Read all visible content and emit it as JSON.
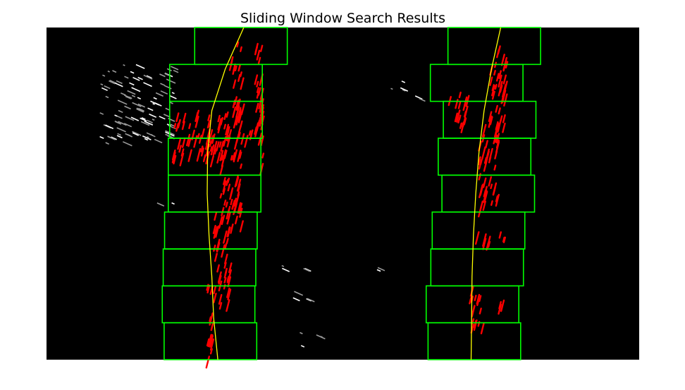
{
  "chart_data": {
    "type": "image_overlay",
    "title": "Sliding Window Search Results",
    "xlabel": "",
    "ylabel": "",
    "xlim": [
      0,
      1280
    ],
    "ylim": [
      720,
      0
    ],
    "axes_visible": false,
    "grid": false,
    "background": "#000000",
    "window_color": "#00ff00",
    "lane_pixel_color": "#ff0000",
    "fit_line_color": "#ffff00",
    "windows": {
      "count": 9,
      "height": 80,
      "left_x_ranges": [
        [
          320,
          520
        ],
        [
          266,
          466
        ],
        [
          266,
          466
        ],
        [
          263,
          463
        ],
        [
          263,
          463
        ],
        [
          255,
          455
        ],
        [
          252,
          452
        ],
        [
          250,
          450
        ],
        [
          254,
          454
        ]
      ],
      "right_x_ranges": [
        [
          867,
          1067
        ],
        [
          829,
          1029
        ],
        [
          857,
          1057
        ],
        [
          846,
          1046
        ],
        [
          854,
          1054
        ],
        [
          833,
          1033
        ],
        [
          830,
          1030
        ],
        [
          820,
          1020
        ],
        [
          824,
          1024
        ]
      ]
    },
    "fits": {
      "left": {
        "x": [
          426,
          386,
          357,
          348,
          347,
          351,
          357,
          361,
          370
        ],
        "y": [
          0,
          90,
          180,
          270,
          360,
          450,
          540,
          630,
          720
        ]
      },
      "right": {
        "x": [
          981,
          961,
          945,
          934,
          927,
          922,
          919,
          918,
          917
        ],
        "y": [
          0,
          90,
          180,
          270,
          360,
          450,
          540,
          630,
          720
        ]
      }
    },
    "pixel_clusters": {
      "left": [
        {
          "x": 395,
          "y": 60,
          "w": 16,
          "h": 140
        },
        {
          "x": 410,
          "y": 20,
          "w": 14,
          "h": 180
        },
        {
          "x": 448,
          "y": 30,
          "w": 18,
          "h": 220
        },
        {
          "x": 270,
          "y": 180,
          "w": 120,
          "h": 100
        },
        {
          "x": 390,
          "y": 200,
          "w": 70,
          "h": 40
        },
        {
          "x": 460,
          "y": 150,
          "w": 8,
          "h": 150
        },
        {
          "x": 375,
          "y": 260,
          "w": 45,
          "h": 180
        },
        {
          "x": 360,
          "y": 380,
          "w": 35,
          "h": 220
        },
        {
          "x": 345,
          "y": 550,
          "w": 14,
          "h": 170
        }
      ],
      "right": [
        {
          "x": 953,
          "y": 40,
          "w": 40,
          "h": 170
        },
        {
          "x": 868,
          "y": 140,
          "w": 40,
          "h": 80
        },
        {
          "x": 933,
          "y": 210,
          "w": 40,
          "h": 180
        },
        {
          "x": 920,
          "y": 440,
          "w": 35,
          "h": 30
        },
        {
          "x": 913,
          "y": 560,
          "w": 28,
          "h": 110
        },
        {
          "x": 973,
          "y": 590,
          "w": 16,
          "h": 18
        },
        {
          "x": 977,
          "y": 440,
          "w": 12,
          "h": 20
        }
      ]
    },
    "noise_clusters": [
      {
        "x": 115,
        "y": 80,
        "w": 160,
        "h": 170
      },
      {
        "x": 215,
        "y": 380,
        "w": 60,
        "h": 10
      },
      {
        "x": 740,
        "y": 110,
        "w": 30,
        "h": 35
      },
      {
        "x": 795,
        "y": 140,
        "w": 10,
        "h": 25
      },
      {
        "x": 505,
        "y": 515,
        "w": 5,
        "h": 10
      },
      {
        "x": 553,
        "y": 520,
        "w": 8,
        "h": 10
      },
      {
        "x": 710,
        "y": 520,
        "w": 6,
        "h": 6
      },
      {
        "x": 530,
        "y": 570,
        "w": 6,
        "h": 20
      },
      {
        "x": 558,
        "y": 578,
        "w": 6,
        "h": 12
      },
      {
        "x": 537,
        "y": 655,
        "w": 14,
        "h": 40
      },
      {
        "x": 582,
        "y": 665,
        "w": 10,
        "h": 5
      }
    ]
  }
}
